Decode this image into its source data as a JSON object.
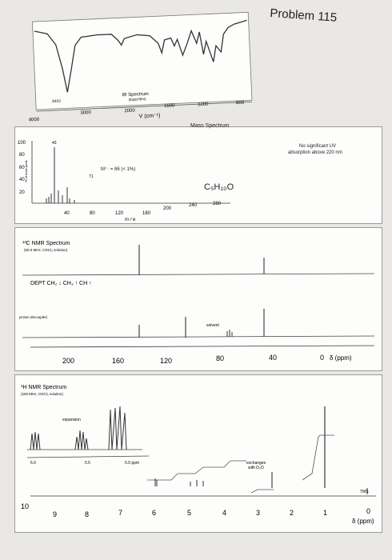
{
  "problem_title": "Problem 115",
  "ir": {
    "title": "IR Spectrum",
    "subtitle": "(liquid film)",
    "axis_label": "V (cm⁻¹)",
    "ticks": [
      "4000",
      "3000",
      "2000",
      "1600",
      "1200",
      "800"
    ],
    "annotation": "3410"
  },
  "mass": {
    "title": "Mass Spectrum",
    "y_axis_label": "% of base peak",
    "y_ticks": [
      "100",
      "80",
      "60",
      "40",
      "20"
    ],
    "x_ticks": [
      "40",
      "80",
      "120",
      "160",
      "200",
      "240",
      "280"
    ],
    "x_label": "m / e",
    "peak_label_43": "43",
    "peak_label_71": "71",
    "molecular_ion": "M⁺· = 86 (< 1%)",
    "formula": "C₅H₁₀O"
  },
  "uv_note_line1": "No significant UV",
  "uv_note_line2": "absorption above 220 nm",
  "cnmr": {
    "title": "¹³C NMR Spectrum",
    "subtitle": "(50.0 MHz, CDCl₃ solution)",
    "dept_label": "DEPT  CH₂ ↓  CH₃ ↑  CH ↑",
    "proton_decoupled": "proton decoupled",
    "solvent": "solvent",
    "ticks": [
      "200",
      "160",
      "120",
      "80",
      "40",
      "0"
    ],
    "axis_unit": "δ (ppm)"
  },
  "hnmr": {
    "title": "¹H NMR Spectrum",
    "subtitle": "(200 MHz, CDCl₃ solution)",
    "expansion": "expansion",
    "inset_ticks": [
      "6.0",
      "5.5",
      "5.0 ppm"
    ],
    "exchanges_line1": "exchanges",
    "exchanges_line2": "with D₂O",
    "tms": "TMS",
    "ticks": [
      "10",
      "9",
      "8",
      "7",
      "6",
      "5",
      "4",
      "3",
      "2",
      "1",
      "0"
    ],
    "axis_unit": "δ (ppm)"
  }
}
